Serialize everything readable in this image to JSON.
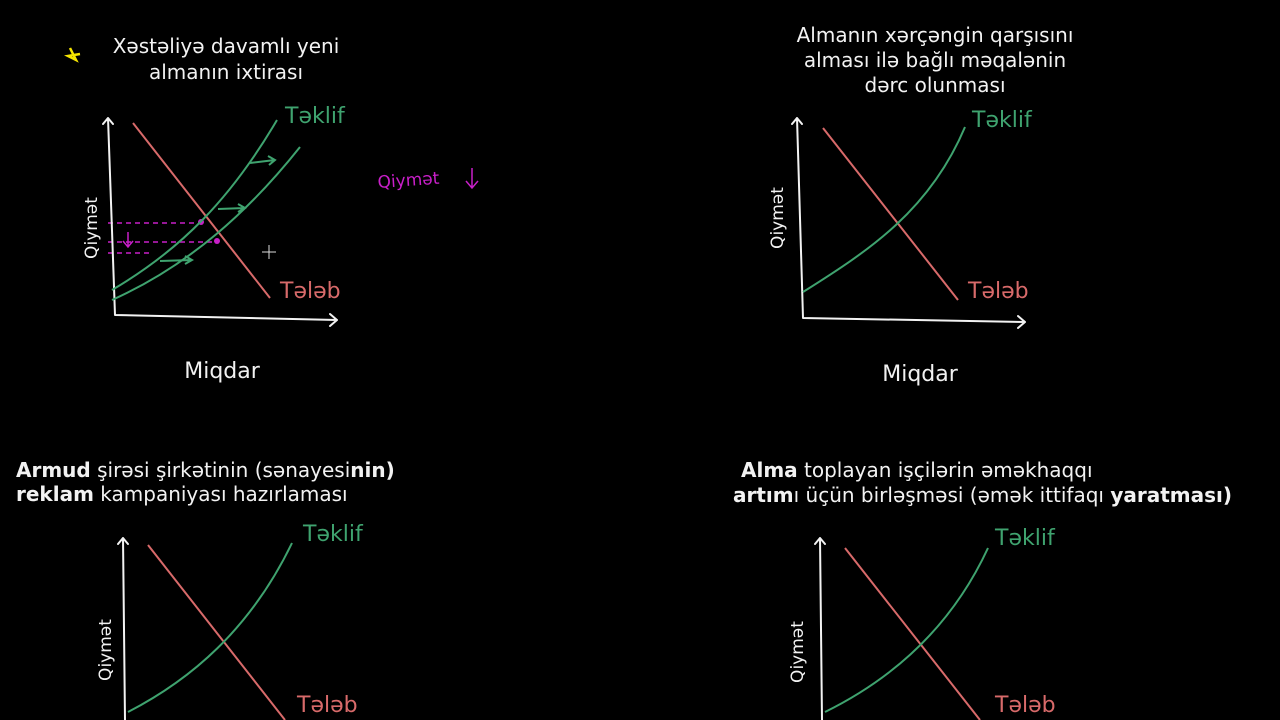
{
  "panels": [
    {
      "title_lines": [
        [
          {
            "text": "Xəstəliyə davamlı yeni",
            "bold": false
          }
        ],
        [
          {
            "text": "almanın ixtirası",
            "bold": false
          }
        ]
      ],
      "y_label": "Qiymət",
      "x_label": "Miqdar",
      "supply_label": "Təklif",
      "demand_label": "Tələb",
      "note": "Qiymət"
    },
    {
      "title_lines": [
        [
          {
            "text": "Almanın xərçəngin qarşısını",
            "bold": false
          }
        ],
        [
          {
            "text": "alması ilə bağlı məqalənin",
            "bold": false
          }
        ],
        [
          {
            "text": "dərc olunması",
            "bold": false
          }
        ]
      ],
      "y_label": "Qiymət",
      "x_label": "Miqdar",
      "supply_label": "Təklif",
      "demand_label": "Tələb"
    },
    {
      "title_lines": [
        [
          {
            "text": "Armud",
            "bold": true
          },
          {
            "text": " şirəsi şirkətinin (sənayesi",
            "bold": false
          },
          {
            "text": "nin)",
            "bold": true
          }
        ],
        [
          {
            "text": "reklam",
            "bold": true
          },
          {
            "text": " kampaniyası hazırlaması",
            "bold": false
          }
        ]
      ],
      "y_label": "Qiymət",
      "supply_label": "Təklif",
      "demand_label": "Tələb"
    },
    {
      "title_lines": [
        [
          {
            "text": "Alma",
            "bold": true
          },
          {
            "text": " toplayan işçilərin əməkhaqqı",
            "bold": false
          }
        ],
        [
          {
            "text": "artım",
            "bold": true
          },
          {
            "text": "ı üçün birləşməsi (əmək ittifaqı ",
            "bold": false
          },
          {
            "text": "yaratması)",
            "bold": true
          }
        ]
      ],
      "y_label": "Qiymət",
      "supply_label": "Təklif",
      "demand_label": "Tələb"
    }
  ]
}
